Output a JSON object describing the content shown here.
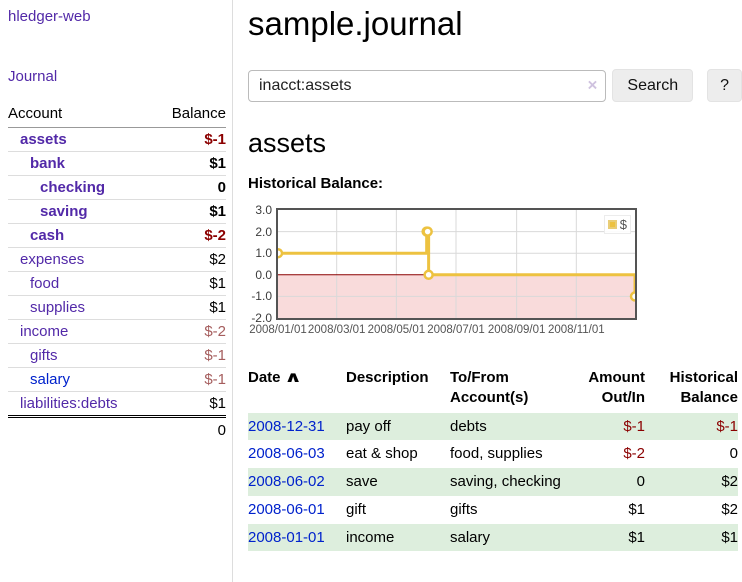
{
  "app": {
    "title": "hledger-web"
  },
  "sidebar": {
    "journal_link": "Journal",
    "accounts_header": {
      "account": "Account",
      "balance": "Balance"
    },
    "accounts": [
      {
        "name": "assets",
        "balance": "$-1"
      },
      {
        "name": "bank",
        "balance": "$1"
      },
      {
        "name": "checking",
        "balance": "0"
      },
      {
        "name": "saving",
        "balance": "$1"
      },
      {
        "name": "cash",
        "balance": "$-2"
      },
      {
        "name": "expenses",
        "balance": "$2"
      },
      {
        "name": "food",
        "balance": "$1"
      },
      {
        "name": "supplies",
        "balance": "$1"
      },
      {
        "name": "income",
        "balance": "$-2"
      },
      {
        "name": "gifts",
        "balance": "$-1"
      },
      {
        "name": "salary",
        "balance": "$-1"
      },
      {
        "name": "liabilities:debts",
        "balance": "$1"
      }
    ],
    "total": "0"
  },
  "main": {
    "title": "sample.journal",
    "search": {
      "value": "inacct:assets",
      "clear_icon": "×",
      "button": "Search",
      "help": "?"
    },
    "account_heading": "assets",
    "chart_label": "Historical Balance:"
  },
  "chart_data": {
    "type": "line",
    "step": true,
    "title": "Historical Balance:",
    "series": [
      {
        "name": "$",
        "points": [
          [
            "2008-01-01",
            1
          ],
          [
            "2008-06-01",
            2
          ],
          [
            "2008-06-02",
            2
          ],
          [
            "2008-06-03",
            0
          ],
          [
            "2008-12-31",
            -1
          ]
        ]
      }
    ],
    "xlim": [
      "2008-01-01",
      "2008-12-31"
    ],
    "ylim": [
      -2,
      3
    ],
    "x_ticks": [
      "2008/01/01",
      "2008/03/01",
      "2008/05/01",
      "2008/07/01",
      "2008/09/01",
      "2008/11/01"
    ],
    "y_ticks": [
      3.0,
      2.0,
      1.0,
      0.0,
      -1.0,
      -2.0
    ],
    "grid": true,
    "line_color": "#edc240",
    "zero_line_color": "#8b0000",
    "negative_region_color": "#f9dbdb",
    "legend": {
      "label": "$",
      "position": "top-right"
    }
  },
  "register": {
    "headers": {
      "date": "Date",
      "sort_icon": "∧",
      "description": "Description",
      "accounts": "To/From Account(s)",
      "amount": "Amount Out/In",
      "balance": "Historical Balance"
    },
    "rows": [
      {
        "date": "2008-12-31",
        "description": "pay off",
        "accounts": "debts",
        "amount": "$-1",
        "balance": "$-1"
      },
      {
        "date": "2008-06-03",
        "description": "eat & shop",
        "accounts": "food, supplies",
        "amount": "$-2",
        "balance": "0"
      },
      {
        "date": "2008-06-02",
        "description": "save",
        "accounts": "saving, checking",
        "amount": "0",
        "balance": "$2"
      },
      {
        "date": "2008-06-01",
        "description": "gift",
        "accounts": "gifts",
        "amount": "$1",
        "balance": "$2"
      },
      {
        "date": "2008-01-01",
        "description": "income",
        "accounts": "salary",
        "amount": "$1",
        "balance": "$1"
      }
    ]
  }
}
